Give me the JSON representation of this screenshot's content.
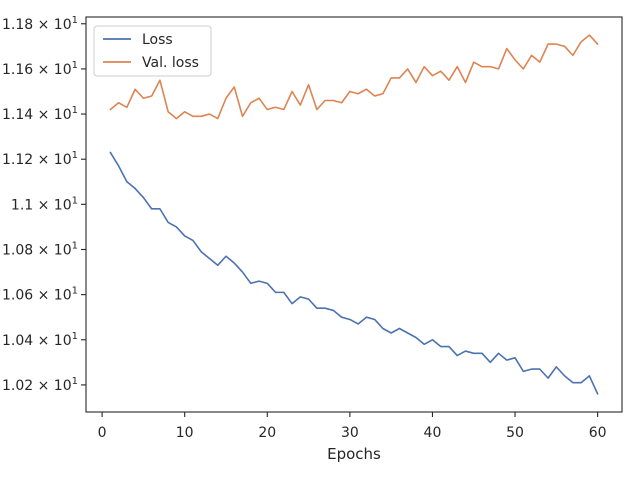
{
  "chart_data": {
    "type": "line",
    "xlabel": "Epochs",
    "ylabel": "",
    "xlim": [
      -1.95,
      62.95
    ],
    "ylim": [
      10.08,
      11.83
    ],
    "grid": false,
    "legend_position": "top-left",
    "x_ticks": [
      {
        "value": 0,
        "label": "0"
      },
      {
        "value": 10,
        "label": "10"
      },
      {
        "value": 20,
        "label": "20"
      },
      {
        "value": 30,
        "label": "30"
      },
      {
        "value": 40,
        "label": "40"
      },
      {
        "value": 50,
        "label": "50"
      },
      {
        "value": 60,
        "label": "60"
      }
    ],
    "y_ticks": [
      {
        "value": 10.2,
        "label": "1.02 × 10",
        "exp": "1"
      },
      {
        "value": 10.4,
        "label": "1.04 × 10",
        "exp": "1"
      },
      {
        "value": 10.6,
        "label": "1.06 × 10",
        "exp": "1"
      },
      {
        "value": 10.8,
        "label": "1.08 × 10",
        "exp": "1"
      },
      {
        "value": 11.0,
        "label": "1.1 × 10",
        "exp": "1"
      },
      {
        "value": 11.2,
        "label": "1.12 × 10",
        "exp": "1"
      },
      {
        "value": 11.4,
        "label": "1.14 × 10",
        "exp": "1"
      },
      {
        "value": 11.6,
        "label": "1.16 × 10",
        "exp": "1"
      },
      {
        "value": 11.8,
        "label": "1.18 × 10",
        "exp": "1"
      }
    ],
    "x": [
      1,
      2,
      3,
      4,
      5,
      6,
      7,
      8,
      9,
      10,
      11,
      12,
      13,
      14,
      15,
      16,
      17,
      18,
      19,
      20,
      21,
      22,
      23,
      24,
      25,
      26,
      27,
      28,
      29,
      30,
      31,
      32,
      33,
      34,
      35,
      36,
      37,
      38,
      39,
      40,
      41,
      42,
      43,
      44,
      45,
      46,
      47,
      48,
      49,
      50,
      51,
      52,
      53,
      54,
      55,
      56,
      57,
      58,
      59,
      60
    ],
    "series": [
      {
        "name": "Loss",
        "color": "#4c72b0",
        "values": [
          11.23,
          11.17,
          11.1,
          11.07,
          11.03,
          10.98,
          10.98,
          10.92,
          10.9,
          10.86,
          10.84,
          10.79,
          10.76,
          10.73,
          10.77,
          10.74,
          10.7,
          10.65,
          10.66,
          10.65,
          10.61,
          10.61,
          10.56,
          10.59,
          10.58,
          10.54,
          10.54,
          10.53,
          10.5,
          10.49,
          10.47,
          10.5,
          10.49,
          10.45,
          10.43,
          10.45,
          10.43,
          10.41,
          10.38,
          10.4,
          10.37,
          10.37,
          10.33,
          10.35,
          10.34,
          10.34,
          10.3,
          10.34,
          10.31,
          10.32,
          10.26,
          10.27,
          10.27,
          10.23,
          10.28,
          10.24,
          10.21,
          10.21,
          10.24,
          10.16
        ]
      },
      {
        "name": "Val. loss",
        "color": "#dd8452",
        "values": [
          11.42,
          11.45,
          11.43,
          11.51,
          11.47,
          11.48,
          11.55,
          11.41,
          11.38,
          11.41,
          11.39,
          11.39,
          11.4,
          11.38,
          11.47,
          11.52,
          11.39,
          11.45,
          11.47,
          11.42,
          11.43,
          11.42,
          11.5,
          11.44,
          11.53,
          11.42,
          11.46,
          11.46,
          11.45,
          11.5,
          11.49,
          11.51,
          11.48,
          11.49,
          11.56,
          11.56,
          11.6,
          11.54,
          11.61,
          11.57,
          11.59,
          11.55,
          11.61,
          11.54,
          11.63,
          11.61,
          11.61,
          11.6,
          11.69,
          11.64,
          11.6,
          11.66,
          11.63,
          11.71,
          11.71,
          11.7,
          11.66,
          11.72,
          11.75,
          11.71
        ]
      }
    ]
  }
}
